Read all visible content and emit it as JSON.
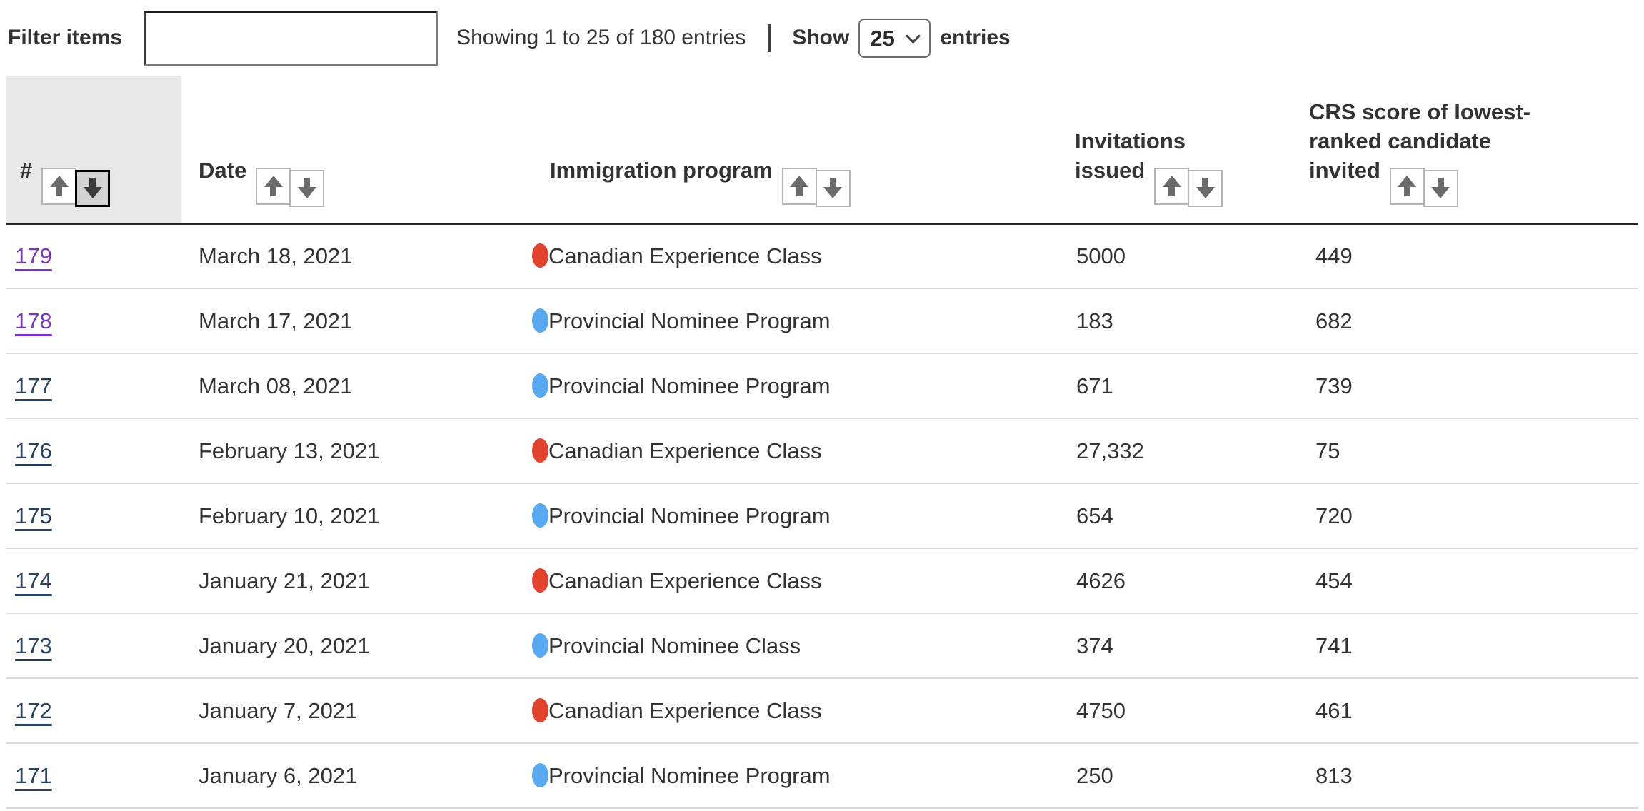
{
  "colors": {
    "red": "#e3422c",
    "blue": "#57a9f1",
    "link": "#284162",
    "visited_link": "#7834bc"
  },
  "toolbar": {
    "filter_label": "Filter items",
    "filter_value": "",
    "showing_text": "Showing 1 to 25 of 180 entries",
    "show_label": "Show",
    "page_size": "25",
    "entries_label": "entries"
  },
  "table": {
    "columns": [
      {
        "label": "#",
        "sorted": "desc"
      },
      {
        "label": "Date",
        "sorted": null
      },
      {
        "label": "Immigration program",
        "sorted": null
      },
      {
        "label": "Invitations issued",
        "sorted": null
      },
      {
        "label": "CRS score of lowest-ranked candidate invited",
        "sorted": null
      }
    ],
    "rows": [
      {
        "num": "179",
        "date": "March 18, 2021",
        "program": "Canadian Experience Class",
        "program_color": "red",
        "invitations": "5000",
        "crs": "449",
        "visited": true
      },
      {
        "num": "178",
        "date": "March 17, 2021",
        "program": "Provincial Nominee Program",
        "program_color": "blue",
        "invitations": "183",
        "crs": "682",
        "visited": true
      },
      {
        "num": "177",
        "date": "March 08, 2021",
        "program": "Provincial Nominee Program",
        "program_color": "blue",
        "invitations": "671",
        "crs": "739",
        "visited": false
      },
      {
        "num": "176",
        "date": "February 13, 2021",
        "program": "Canadian Experience Class",
        "program_color": "red",
        "invitations": "27,332",
        "crs": "75",
        "visited": false
      },
      {
        "num": "175",
        "date": "February 10, 2021",
        "program": "Provincial Nominee Program",
        "program_color": "blue",
        "invitations": "654",
        "crs": "720",
        "visited": false
      },
      {
        "num": "174",
        "date": "January 21, 2021",
        "program": "Canadian Experience Class",
        "program_color": "red",
        "invitations": "4626",
        "crs": "454",
        "visited": false
      },
      {
        "num": "173",
        "date": "January 20, 2021",
        "program": "Provincial Nominee Class",
        "program_color": "blue",
        "invitations": "374",
        "crs": "741",
        "visited": false
      },
      {
        "num": "172",
        "date": "January 7, 2021",
        "program": "Canadian Experience Class",
        "program_color": "red",
        "invitations": "4750",
        "crs": "461",
        "visited": false
      },
      {
        "num": "171",
        "date": "January 6, 2021",
        "program": "Provincial Nominee Program",
        "program_color": "blue",
        "invitations": "250",
        "crs": "813",
        "visited": false
      }
    ]
  }
}
